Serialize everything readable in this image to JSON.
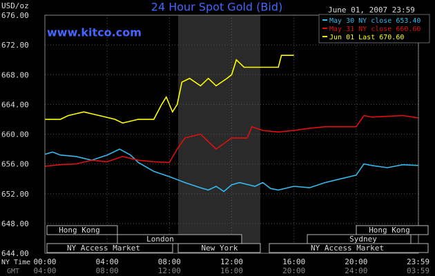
{
  "chart_data": {
    "type": "line",
    "title": "24 Hour Spot Gold (Bid)",
    "date": "June 01, 2007 23:59",
    "y_label": "USD/oz",
    "source": "www.kitco.com",
    "x_row_labels": [
      "NY Time",
      "GMT"
    ],
    "xlim": [
      0,
      24
    ],
    "xticks": [
      {
        "value": 0,
        "label": "00:00"
      },
      {
        "value": 4,
        "label": "04:00"
      },
      {
        "value": 8,
        "label": "08:00"
      },
      {
        "value": 12,
        "label": "12:00"
      },
      {
        "value": 16,
        "label": "16:00"
      },
      {
        "value": 20,
        "label": "20:00"
      },
      {
        "value": 23.983,
        "label": "23:59"
      }
    ],
    "gmt_labels": [
      "04:00",
      "08:00",
      "12:00",
      "16:00",
      "20:00",
      "24:00",
      "03:59"
    ],
    "ylim": [
      644,
      676
    ],
    "yticks": [
      {
        "value": 644,
        "label": "644.00"
      },
      {
        "value": 648,
        "label": "648.00"
      },
      {
        "value": 652,
        "label": "652.00"
      },
      {
        "value": 656,
        "label": "656.00"
      },
      {
        "value": 660,
        "label": "660.00"
      },
      {
        "value": 664,
        "label": "664.00"
      },
      {
        "value": 668,
        "label": "668.00"
      },
      {
        "value": 672,
        "label": "672.00"
      },
      {
        "value": 676,
        "label": "676.00"
      }
    ],
    "grid": true,
    "sessions": [
      "Hong Kong",
      "London",
      "NY Access Market",
      "New York",
      "NY Access Market",
      "Hong Kong",
      "Sydney"
    ],
    "series": [
      {
        "name": "May 30 NY close 653.40",
        "color": "#33bbee",
        "x": [
          0,
          0.5,
          1,
          2,
          3,
          4,
          4.8,
          5.5,
          6,
          7,
          8,
          9,
          10,
          10.5,
          11,
          11.5,
          12,
          12.5,
          13.5,
          14,
          14.5,
          15,
          16,
          17,
          18,
          19,
          20,
          20.5,
          21,
          22,
          23,
          23.983
        ],
        "values": [
          657.3,
          657.6,
          657.2,
          657,
          656.5,
          657.2,
          658,
          657.2,
          656.2,
          655,
          654.3,
          653.5,
          652.8,
          652.5,
          653,
          652.3,
          653.2,
          653.5,
          653,
          653.5,
          652.7,
          652.5,
          653,
          652.8,
          653.5,
          654,
          654.5,
          656,
          655.8,
          655.5,
          655.9,
          655.8
        ]
      },
      {
        "name": "May 31 NY close 660.60",
        "color": "#e01010",
        "x": [
          0,
          1,
          2,
          3,
          4,
          5,
          6,
          7,
          8,
          8.5,
          9,
          10,
          10.5,
          11,
          12,
          13,
          13.3,
          14,
          15,
          16,
          17,
          18,
          19,
          20,
          20.5,
          21,
          22,
          23,
          23.983
        ],
        "values": [
          655.7,
          655.9,
          656,
          656.5,
          656.3,
          657,
          656.5,
          656.3,
          656.2,
          658,
          659.5,
          660,
          659,
          658,
          659.5,
          659.5,
          661,
          660.5,
          660.3,
          660.5,
          660.8,
          661,
          661,
          661,
          662.5,
          662.3,
          662.4,
          662.5,
          662.2
        ]
      },
      {
        "name": "Jun 01 Last 670.60",
        "color": "#ffff00",
        "x": [
          0,
          1,
          1.5,
          2.5,
          3.5,
          4.5,
          5,
          6,
          7,
          7.5,
          7.8,
          8.2,
          8.5,
          8.8,
          9.3,
          10,
          10.5,
          11,
          11.7,
          12,
          12.3,
          12.8,
          15,
          15.2,
          16
        ],
        "values": [
          662,
          662,
          662.5,
          663,
          662.5,
          662,
          661.5,
          662,
          662,
          664,
          665,
          663,
          664,
          667,
          667.5,
          666.5,
          667.5,
          666.5,
          667.5,
          668,
          670,
          669,
          669,
          670.6,
          670.6
        ]
      }
    ]
  }
}
